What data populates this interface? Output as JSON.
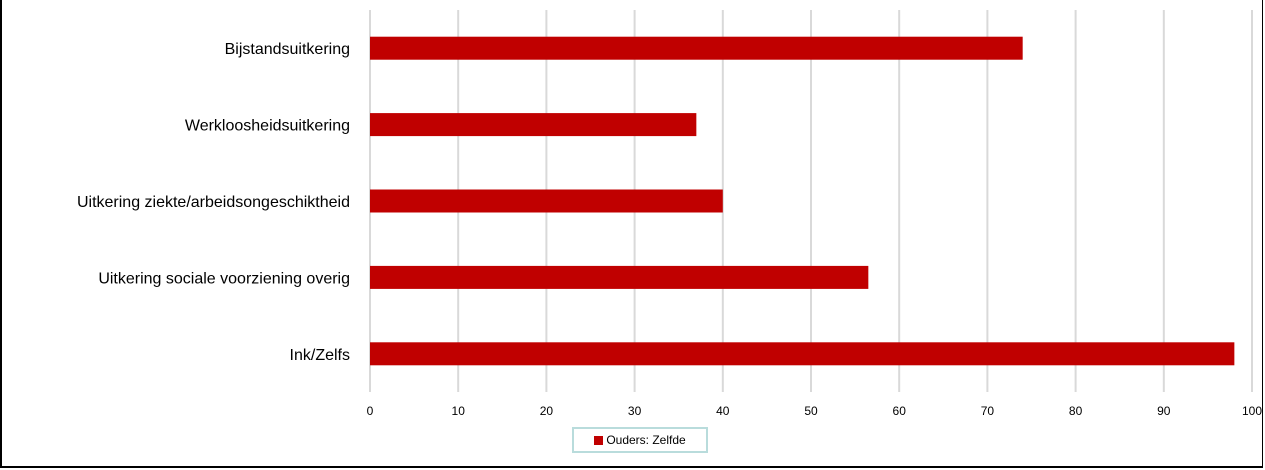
{
  "chart_data": {
    "type": "bar",
    "orientation": "horizontal",
    "categories": [
      "Bijstandsuitkering",
      "Werkloosheidsuitkering",
      "Uitkering ziekte/arbeidsongeschiktheid",
      "Uitkering sociale voorziening overig",
      "Ink/Zelfs"
    ],
    "series": [
      {
        "name": "Ouders: Zelfde",
        "values": [
          74,
          37,
          40,
          56.5,
          98
        ]
      }
    ],
    "xlim": [
      0,
      100
    ],
    "xticks": [
      0,
      10,
      20,
      30,
      40,
      50,
      60,
      70,
      80,
      90,
      100
    ],
    "grid": "vertical",
    "legend": "bottom",
    "colors": {
      "bar": "#c00000",
      "grid": "#d9d9d9",
      "legend_border": "#b9dcdc"
    }
  },
  "legend": {
    "label": "Ouders: Zelfde"
  }
}
